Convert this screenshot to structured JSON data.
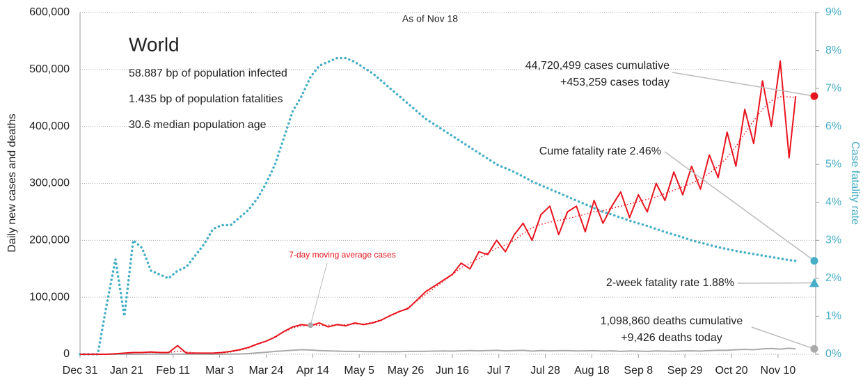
{
  "chart_data": {
    "type": "line",
    "subtitle": "As of Nov 18",
    "info": {
      "title": "World",
      "lines": [
        "58.887 bp of population infected",
        "1.435 bp of population fatalities",
        "30.6 median population age"
      ]
    },
    "ylabel": "Daily new cases and deaths",
    "y2label": "Case fatality rate",
    "x": [
      0,
      4,
      8,
      12,
      16,
      20,
      24,
      28,
      32,
      36,
      40,
      44,
      48,
      52,
      56,
      60,
      64,
      68,
      72,
      76,
      80,
      84,
      88,
      92,
      96,
      100,
      104,
      108,
      112,
      116,
      120,
      124,
      128,
      132,
      136,
      140,
      144,
      148,
      152,
      156,
      160,
      164,
      168,
      172,
      176,
      180,
      184,
      188,
      192,
      196,
      200,
      204,
      208,
      212,
      216,
      220,
      224,
      228,
      232,
      236,
      240,
      244,
      248,
      252,
      256,
      260,
      264,
      268,
      272,
      276,
      280,
      284,
      288,
      292,
      296,
      300,
      304,
      308,
      312,
      316,
      320,
      323
    ],
    "xlim": [
      0,
      332
    ],
    "xticks": [
      {
        "value": 0,
        "label": "Dec 31"
      },
      {
        "value": 21,
        "label": "Jan 21"
      },
      {
        "value": 42,
        "label": "Feb 11"
      },
      {
        "value": 63,
        "label": "Mar 3"
      },
      {
        "value": 84,
        "label": "Mar 24"
      },
      {
        "value": 105,
        "label": "Apr 14"
      },
      {
        "value": 126,
        "label": "May 5"
      },
      {
        "value": 147,
        "label": "May 26"
      },
      {
        "value": 168,
        "label": "Jun 16"
      },
      {
        "value": 189,
        "label": "Jul 7"
      },
      {
        "value": 210,
        "label": "Jul 28"
      },
      {
        "value": 231,
        "label": "Aug 18"
      },
      {
        "value": 252,
        "label": "Sep 8"
      },
      {
        "value": 273,
        "label": "Sep 29"
      },
      {
        "value": 294,
        "label": "Oct 20"
      },
      {
        "value": 315,
        "label": "Nov 10"
      }
    ],
    "ylim": [
      0,
      600000
    ],
    "yticks": [
      0,
      {
        "value": 100000,
        "label": "100,000"
      },
      {
        "value": 200000,
        "label": "200,000"
      },
      {
        "value": 300000,
        "label": "300,000"
      },
      {
        "value": 400000,
        "label": "400,000"
      },
      {
        "value": 500000,
        "label": "500,000"
      },
      {
        "value": 600000,
        "label": "600,000"
      }
    ],
    "y2lim": [
      0,
      9
    ],
    "y2ticks": [
      {
        "value": 0,
        "label": "0%"
      },
      {
        "value": 1,
        "label": "1%"
      },
      {
        "value": 2,
        "label": "2%"
      },
      {
        "value": 3,
        "label": "3%"
      },
      {
        "value": 4,
        "label": "4%"
      },
      {
        "value": 5,
        "label": "5%"
      },
      {
        "value": 6,
        "label": "6%"
      },
      {
        "value": 7,
        "label": "7%"
      },
      {
        "value": 8,
        "label": "8%"
      },
      {
        "value": 9,
        "label": "9%"
      }
    ],
    "grid": true,
    "series": [
      {
        "color": "#e8141e",
        "style": "solid",
        "axis": "y",
        "values": [
          0,
          0,
          0,
          0,
          1000,
          2000,
          3000,
          3000,
          4000,
          3000,
          3000,
          15000,
          2000,
          2000,
          2000,
          2000,
          3000,
          5000,
          8000,
          12000,
          18000,
          23000,
          30000,
          40000,
          48000,
          52000,
          50000,
          55000,
          48000,
          52000,
          50000,
          55000,
          52000,
          55000,
          60000,
          68000,
          75000,
          80000,
          95000,
          110000,
          120000,
          130000,
          140000,
          160000,
          150000,
          180000,
          175000,
          200000,
          180000,
          210000,
          230000,
          200000,
          245000,
          260000,
          210000,
          250000,
          260000,
          215000,
          270000,
          230000,
          260000,
          285000,
          240000,
          280000,
          250000,
          300000,
          270000,
          320000,
          280000,
          330000,
          290000,
          350000,
          310000,
          390000,
          330000,
          430000,
          370000,
          480000,
          400000,
          515000,
          345000,
          453259
        ]
      },
      {
        "name": "7-day moving average cases",
        "color": "#e8141e",
        "style": "dotted",
        "axis": "y",
        "values": [
          0,
          0,
          0,
          0,
          500,
          1500,
          2500,
          3000,
          3000,
          3000,
          3000,
          5000,
          4000,
          2500,
          2000,
          2000,
          2500,
          4000,
          7000,
          11000,
          17000,
          23000,
          31000,
          39000,
          46000,
          50000,
          51000,
          51000,
          51000,
          51000,
          52000,
          53000,
          53000,
          56000,
          61000,
          67000,
          74000,
          82000,
          93000,
          105000,
          117000,
          128000,
          140000,
          152000,
          160000,
          168000,
          178000,
          186000,
          192000,
          200000,
          212000,
          222000,
          228000,
          232000,
          235000,
          238000,
          242000,
          246000,
          250000,
          252000,
          256000,
          260000,
          264000,
          268000,
          272000,
          276000,
          282000,
          288000,
          294000,
          300000,
          308000,
          318000,
          330000,
          345000,
          365000,
          388000,
          410000,
          430000,
          445000,
          452000,
          452000,
          450000
        ]
      },
      {
        "color": "#aaaaaa",
        "style": "solid",
        "axis": "y",
        "values": [
          0,
          0,
          0,
          0,
          0,
          10,
          40,
          60,
          90,
          100,
          110,
          300,
          150,
          100,
          80,
          60,
          100,
          200,
          500,
          1200,
          2500,
          3500,
          5000,
          6000,
          7000,
          8000,
          7500,
          6500,
          6000,
          5500,
          5000,
          5000,
          4800,
          4500,
          4500,
          4500,
          4700,
          5000,
          5000,
          5200,
          5500,
          5800,
          5500,
          6000,
          6500,
          6000,
          6500,
          6800,
          6000,
          6500,
          6800,
          5500,
          6500,
          6000,
          6200,
          6500,
          5800,
          6000,
          6200,
          5500,
          6000,
          5000,
          5800,
          5500,
          5000,
          5800,
          5500,
          5200,
          5800,
          6000,
          5500,
          6500,
          7000,
          6800,
          8000,
          8500,
          8000,
          9500,
          10000,
          9000,
          10500,
          9426
        ]
      },
      {
        "color": "#45aec6",
        "style": "dotted-thick",
        "axis": "y2",
        "values": [
          0,
          0,
          0,
          1.3,
          2.5,
          1.0,
          3.0,
          2.8,
          2.2,
          2.1,
          2.0,
          2.2,
          2.3,
          2.6,
          2.9,
          3.3,
          3.4,
          3.4,
          3.6,
          3.8,
          4.1,
          4.5,
          5.0,
          5.7,
          6.4,
          6.8,
          7.3,
          7.6,
          7.7,
          7.8,
          7.8,
          7.7,
          7.55,
          7.4,
          7.2,
          7.0,
          6.8,
          6.6,
          6.4,
          6.2,
          6.05,
          5.9,
          5.75,
          5.6,
          5.45,
          5.3,
          5.15,
          5.0,
          4.9,
          4.8,
          4.68,
          4.55,
          4.45,
          4.35,
          4.25,
          4.15,
          4.05,
          3.95,
          3.85,
          3.75,
          3.68,
          3.6,
          3.52,
          3.45,
          3.38,
          3.3,
          3.22,
          3.15,
          3.08,
          3.0,
          2.94,
          2.88,
          2.82,
          2.77,
          2.72,
          2.68,
          2.64,
          2.6,
          2.56,
          2.52,
          2.48,
          2.46
        ]
      }
    ],
    "markers": [
      {
        "text": [
          "44,720,499 cases cumulative",
          "+453,259 cases today"
        ],
        "value": 453259,
        "axis": "y",
        "shape": "circle",
        "color": "#e8141e"
      },
      {
        "text": [
          "Cume fatality rate 2.46%"
        ],
        "value": 2.46,
        "axis": "y2",
        "shape": "circle",
        "color": "#45aec6"
      },
      {
        "text": [
          "2-week fatality rate 1.88%"
        ],
        "value": 1.88,
        "axis": "y2",
        "shape": "triangle",
        "color": "#45aec6"
      },
      {
        "text": [
          "1,098,860 deaths cumulative",
          "+9,426 deaths today"
        ],
        "value": 9426,
        "axis": "y",
        "shape": "circle",
        "color": "#aaaaaa"
      }
    ]
  }
}
